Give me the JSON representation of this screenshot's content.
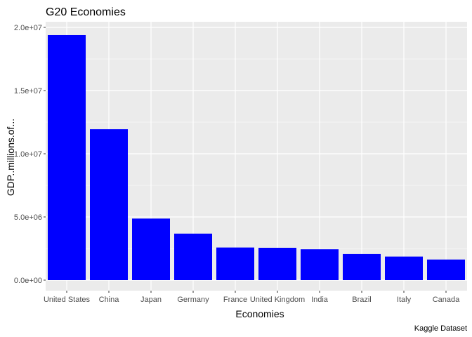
{
  "chart_data": {
    "type": "bar",
    "title": "G20 Economies",
    "xlabel": "Economies",
    "ylabel": "GDP..millions.of...",
    "caption": "Kaggle Dataset",
    "categories": [
      "United States",
      "China",
      "Japan",
      "Germany",
      "France",
      "United Kingdom",
      "India",
      "Brazil",
      "Italy",
      "Canada"
    ],
    "values": [
      19390000,
      11940000,
      4870000,
      3680000,
      2580000,
      2560000,
      2440000,
      2060000,
      1860000,
      1630000
    ],
    "ylim": [
      0,
      20000000
    ],
    "yticks": [
      0,
      5000000,
      10000000,
      15000000,
      20000000
    ],
    "ytick_labels": [
      "0.0e+00",
      "5.0e+06",
      "1.0e+07",
      "1.5e+07",
      "2.0e+07"
    ],
    "bar_color": "#0000FF",
    "panel_background": "#EBEBEB",
    "grid": true,
    "legend": "none"
  }
}
